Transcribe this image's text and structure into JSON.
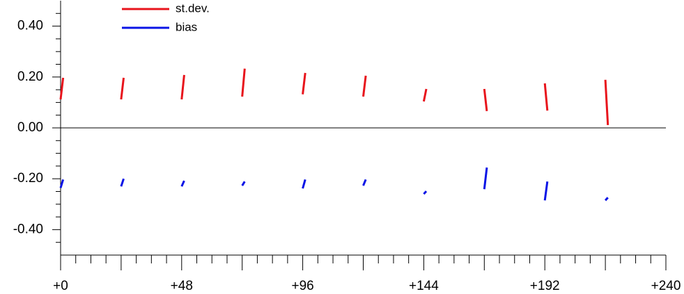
{
  "chart_data": {
    "type": "segments",
    "xlim": [
      0,
      240
    ],
    "ylim": [
      -0.5,
      0.5
    ],
    "xticks": [
      {
        "value": 0,
        "label": "+0"
      },
      {
        "value": 48,
        "label": "+48"
      },
      {
        "value": 96,
        "label": "+96"
      },
      {
        "value": 144,
        "label": "+144"
      },
      {
        "value": 192,
        "label": "+192"
      },
      {
        "value": 240,
        "label": "+240"
      }
    ],
    "xminorticks": [
      6,
      12,
      18,
      24,
      30,
      36,
      42,
      54,
      60,
      66,
      72,
      78,
      84,
      90,
      102,
      108,
      114,
      120,
      126,
      132,
      138,
      150,
      156,
      162,
      168,
      174,
      180,
      186,
      198,
      204,
      210,
      216,
      222,
      228,
      234
    ],
    "yticks": [
      {
        "value": -0.4,
        "label": "-0.40"
      },
      {
        "value": -0.2,
        "label": "-0.20"
      },
      {
        "value": 0,
        "label": "0.00"
      },
      {
        "value": 0.2,
        "label": "0.20"
      },
      {
        "value": 0.4,
        "label": "0.40"
      }
    ],
    "yminorticks": [
      -0.45,
      -0.35,
      -0.3,
      -0.25,
      -0.15,
      -0.1,
      -0.05,
      0.05,
      0.1,
      0.15,
      0.25,
      0.3,
      0.35,
      0.45
    ],
    "zero_line": 0,
    "legend": "upper left",
    "series": [
      {
        "name": "st.dev.",
        "color": "#e8141c",
        "segments": [
          {
            "x": [
              0,
              1
            ],
            "y": [
              0.112,
              0.197
            ]
          },
          {
            "x": [
              24,
              25
            ],
            "y": [
              0.112,
              0.197
            ]
          },
          {
            "x": [
              48,
              49
            ],
            "y": [
              0.112,
              0.208
            ]
          },
          {
            "x": [
              72,
              73
            ],
            "y": [
              0.123,
              0.233
            ]
          },
          {
            "x": [
              96,
              97
            ],
            "y": [
              0.132,
              0.216
            ]
          },
          {
            "x": [
              120,
              121
            ],
            "y": [
              0.123,
              0.205
            ]
          },
          {
            "x": [
              144,
              145
            ],
            "y": [
              0.104,
              0.153
            ]
          },
          {
            "x": [
              168,
              169
            ],
            "y": [
              0.153,
              0.066
            ]
          },
          {
            "x": [
              192,
              193
            ],
            "y": [
              0.175,
              0.068
            ]
          },
          {
            "x": [
              216,
              217
            ],
            "y": [
              0.189,
              0.011
            ]
          }
        ]
      },
      {
        "name": "bias",
        "color": "#0a14e6",
        "segments": [
          {
            "x": [
              0,
              1
            ],
            "y": [
              -0.236,
              -0.203
            ]
          },
          {
            "x": [
              24,
              25
            ],
            "y": [
              -0.23,
              -0.2
            ]
          },
          {
            "x": [
              48,
              49
            ],
            "y": [
              -0.23,
              -0.208
            ]
          },
          {
            "x": [
              72,
              73
            ],
            "y": [
              -0.227,
              -0.211
            ]
          },
          {
            "x": [
              96,
              97
            ],
            "y": [
              -0.238,
              -0.203
            ]
          },
          {
            "x": [
              120,
              121
            ],
            "y": [
              -0.227,
              -0.203
            ]
          },
          {
            "x": [
              144,
              145
            ],
            "y": [
              -0.26,
              -0.249
            ]
          },
          {
            "x": [
              168,
              169
            ],
            "y": [
              -0.241,
              -0.156
            ]
          },
          {
            "x": [
              192,
              193
            ],
            "y": [
              -0.285,
              -0.211
            ]
          },
          {
            "x": [
              216,
              217
            ],
            "y": [
              -0.285,
              -0.274
            ]
          }
        ]
      }
    ]
  }
}
